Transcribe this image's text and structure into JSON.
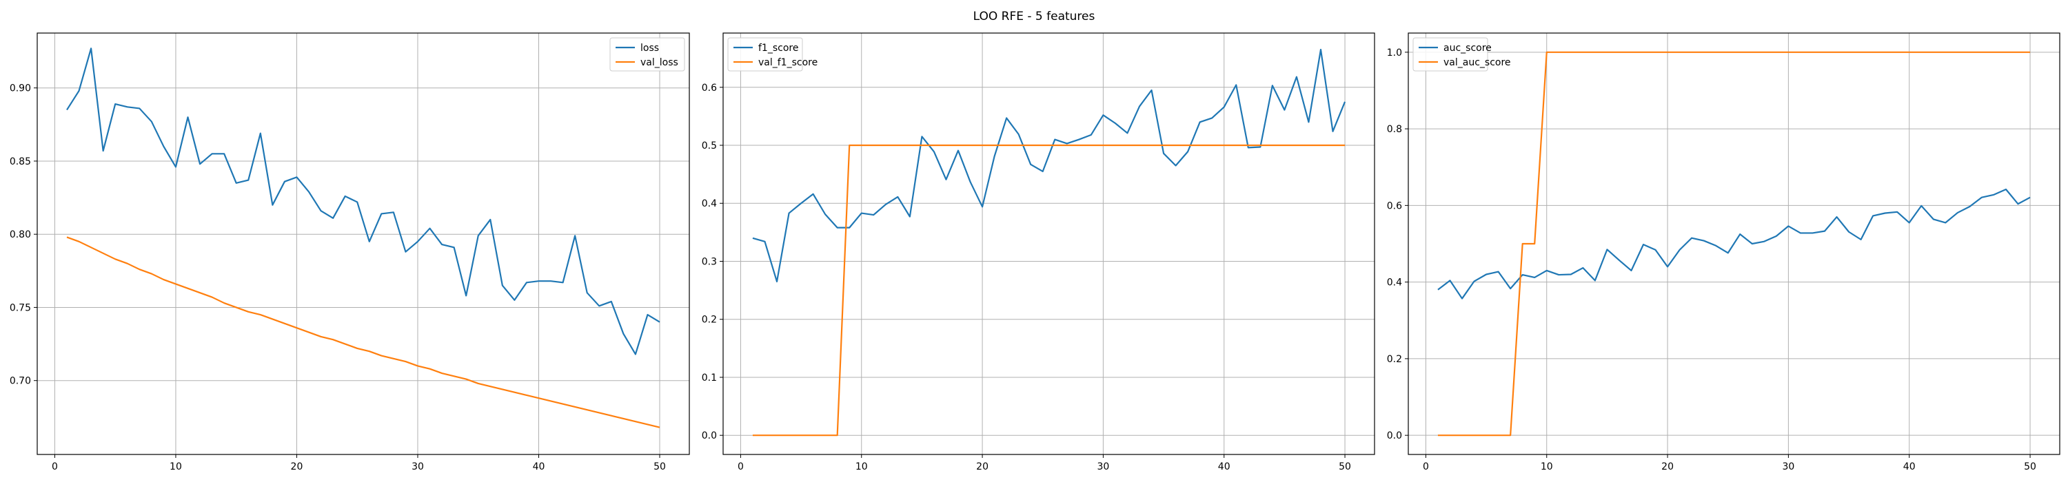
{
  "title": "LOO RFE - 5 features",
  "colors": {
    "series_1": "#1f77b4",
    "series_2": "#ff7f0e",
    "grid": "#b0b0b0",
    "frame": "#000000"
  },
  "chart_data": [
    {
      "type": "line",
      "grid": true,
      "legend_position": "top-right",
      "xlim": [
        -1.45,
        52.45
      ],
      "ylim": [
        0.6495,
        0.9375
      ],
      "x_ticks": [
        0,
        10,
        20,
        30,
        40,
        50
      ],
      "y_ticks": [
        0.7,
        0.75,
        0.8,
        0.85,
        0.9
      ],
      "y_tick_labels": [
        "0.70",
        "0.75",
        "0.80",
        "0.85",
        "0.90"
      ],
      "series": [
        {
          "name": "loss",
          "color": "#1f77b4",
          "x": [
            1,
            2,
            3,
            4,
            5,
            6,
            7,
            8,
            9,
            10,
            11,
            12,
            13,
            14,
            15,
            16,
            17,
            18,
            19,
            20,
            21,
            22,
            23,
            24,
            25,
            26,
            27,
            28,
            29,
            30,
            31,
            32,
            33,
            34,
            35,
            36,
            37,
            38,
            39,
            40,
            41,
            42,
            43,
            44,
            45,
            46,
            47,
            48,
            49,
            50
          ],
          "values": [
            0.885,
            0.898,
            0.927,
            0.857,
            0.889,
            0.887,
            0.886,
            0.877,
            0.86,
            0.846,
            0.88,
            0.848,
            0.855,
            0.855,
            0.835,
            0.837,
            0.869,
            0.82,
            0.836,
            0.839,
            0.829,
            0.816,
            0.811,
            0.826,
            0.822,
            0.795,
            0.814,
            0.815,
            0.788,
            0.795,
            0.804,
            0.793,
            0.791,
            0.758,
            0.799,
            0.81,
            0.765,
            0.755,
            0.767,
            0.768,
            0.768,
            0.767,
            0.799,
            0.76,
            0.751,
            0.754,
            0.732,
            0.718,
            0.745,
            0.74
          ]
        },
        {
          "name": "val_loss",
          "color": "#ff7f0e",
          "x": [
            1,
            2,
            3,
            4,
            5,
            6,
            7,
            8,
            9,
            10,
            11,
            12,
            13,
            14,
            15,
            16,
            17,
            18,
            19,
            20,
            21,
            22,
            23,
            24,
            25,
            26,
            27,
            28,
            29,
            30,
            31,
            32,
            33,
            34,
            35,
            36,
            37,
            38,
            39,
            40,
            41,
            42,
            43,
            44,
            45,
            46,
            47,
            48,
            49,
            50
          ],
          "values": [
            0.798,
            0.795,
            0.791,
            0.787,
            0.783,
            0.78,
            0.776,
            0.773,
            0.769,
            0.766,
            0.763,
            0.76,
            0.757,
            0.753,
            0.75,
            0.747,
            0.745,
            0.742,
            0.739,
            0.736,
            0.733,
            0.73,
            0.728,
            0.725,
            0.722,
            0.72,
            0.717,
            0.715,
            0.713,
            0.71,
            0.708,
            0.705,
            0.703,
            0.701,
            0.698,
            0.696,
            0.694,
            0.692,
            0.69,
            0.688,
            0.686,
            0.684,
            0.682,
            0.68,
            0.678,
            0.676,
            0.674,
            0.672,
            0.67,
            0.668
          ]
        }
      ]
    },
    {
      "type": "line",
      "grid": true,
      "legend_position": "top-left",
      "xlim": [
        -1.45,
        52.45
      ],
      "ylim": [
        -0.033,
        0.6935
      ],
      "x_ticks": [
        0,
        10,
        20,
        30,
        40,
        50
      ],
      "y_ticks": [
        0.0,
        0.1,
        0.2,
        0.3,
        0.4,
        0.5,
        0.6
      ],
      "y_tick_labels": [
        "0.0",
        "0.1",
        "0.2",
        "0.3",
        "0.4",
        "0.5",
        "0.6"
      ],
      "series": [
        {
          "name": "f1_score",
          "color": "#1f77b4",
          "x": [
            1,
            2,
            3,
            4,
            5,
            6,
            7,
            8,
            9,
            10,
            11,
            12,
            13,
            14,
            15,
            16,
            17,
            18,
            19,
            20,
            21,
            22,
            23,
            24,
            25,
            26,
            27,
            28,
            29,
            30,
            31,
            32,
            33,
            34,
            35,
            36,
            37,
            38,
            39,
            40,
            41,
            42,
            43,
            44,
            45,
            46,
            47,
            48,
            49,
            50
          ],
          "values": [
            0.34,
            0.334,
            0.265,
            0.383,
            0.4,
            0.416,
            0.381,
            0.358,
            0.358,
            0.383,
            0.38,
            0.398,
            0.411,
            0.377,
            0.515,
            0.489,
            0.441,
            0.491,
            0.437,
            0.394,
            0.481,
            0.547,
            0.519,
            0.467,
            0.455,
            0.51,
            0.503,
            0.51,
            0.518,
            0.552,
            0.538,
            0.521,
            0.567,
            0.595,
            0.486,
            0.465,
            0.489,
            0.54,
            0.547,
            0.566,
            0.604,
            0.496,
            0.497,
            0.603,
            0.561,
            0.618,
            0.54,
            0.665,
            0.524,
            0.575
          ]
        },
        {
          "name": "val_f1_score",
          "color": "#ff7f0e",
          "x": [
            1,
            2,
            3,
            4,
            5,
            6,
            7,
            8,
            9,
            10,
            11,
            12,
            13,
            14,
            15,
            16,
            17,
            18,
            19,
            20,
            21,
            22,
            23,
            24,
            25,
            26,
            27,
            28,
            29,
            30,
            31,
            32,
            33,
            34,
            35,
            36,
            37,
            38,
            39,
            40,
            41,
            42,
            43,
            44,
            45,
            46,
            47,
            48,
            49,
            50
          ],
          "values": [
            0,
            0,
            0,
            0,
            0,
            0,
            0,
            0,
            0.5,
            0.5,
            0.5,
            0.5,
            0.5,
            0.5,
            0.5,
            0.5,
            0.5,
            0.5,
            0.5,
            0.5,
            0.5,
            0.5,
            0.5,
            0.5,
            0.5,
            0.5,
            0.5,
            0.5,
            0.5,
            0.5,
            0.5,
            0.5,
            0.5,
            0.5,
            0.5,
            0.5,
            0.5,
            0.5,
            0.5,
            0.5,
            0.5,
            0.5,
            0.5,
            0.5,
            0.5,
            0.5,
            0.5,
            0.5,
            0.5,
            0.5
          ]
        }
      ]
    },
    {
      "type": "line",
      "grid": true,
      "legend_position": "top-left",
      "xlim": [
        -1.45,
        52.45
      ],
      "ylim": [
        -0.05,
        1.05
      ],
      "x_ticks": [
        0,
        10,
        20,
        30,
        40,
        50
      ],
      "y_ticks": [
        0.0,
        0.2,
        0.4,
        0.6,
        0.8,
        1.0
      ],
      "y_tick_labels": [
        "0.0",
        "0.2",
        "0.4",
        "0.6",
        "0.8",
        "1.0"
      ],
      "series": [
        {
          "name": "auc_score",
          "color": "#1f77b4",
          "x": [
            1,
            2,
            3,
            4,
            5,
            6,
            7,
            8,
            9,
            10,
            11,
            12,
            13,
            14,
            15,
            16,
            17,
            18,
            19,
            20,
            21,
            22,
            23,
            24,
            25,
            26,
            27,
            28,
            29,
            30,
            31,
            32,
            33,
            34,
            35,
            36,
            37,
            38,
            39,
            40,
            41,
            42,
            43,
            44,
            45,
            46,
            47,
            48,
            49,
            50
          ],
          "values": [
            0.38,
            0.404,
            0.357,
            0.402,
            0.42,
            0.427,
            0.383,
            0.419,
            0.412,
            0.43,
            0.419,
            0.42,
            0.437,
            0.404,
            0.485,
            0.457,
            0.43,
            0.498,
            0.484,
            0.44,
            0.484,
            0.515,
            0.508,
            0.495,
            0.476,
            0.525,
            0.5,
            0.506,
            0.52,
            0.546,
            0.528,
            0.528,
            0.533,
            0.57,
            0.531,
            0.511,
            0.573,
            0.58,
            0.583,
            0.555,
            0.599,
            0.564,
            0.555,
            0.581,
            0.597,
            0.621,
            0.628,
            0.642,
            0.604,
            0.621
          ]
        },
        {
          "name": "val_auc_score",
          "color": "#ff7f0e",
          "x": [
            1,
            2,
            3,
            4,
            5,
            6,
            7,
            8,
            9,
            10,
            11,
            12,
            13,
            14,
            15,
            16,
            17,
            18,
            19,
            20,
            21,
            22,
            23,
            24,
            25,
            26,
            27,
            28,
            29,
            30,
            31,
            32,
            33,
            34,
            35,
            36,
            37,
            38,
            39,
            40,
            41,
            42,
            43,
            44,
            45,
            46,
            47,
            48,
            49,
            50
          ],
          "values": [
            0,
            0,
            0,
            0,
            0,
            0,
            0,
            0.5,
            0.5,
            1,
            1,
            1,
            1,
            1,
            1,
            1,
            1,
            1,
            1,
            1,
            1,
            1,
            1,
            1,
            1,
            1,
            1,
            1,
            1,
            1,
            1,
            1,
            1,
            1,
            1,
            1,
            1,
            1,
            1,
            1,
            1,
            1,
            1,
            1,
            1,
            1,
            1,
            1,
            1,
            1
          ]
        }
      ]
    }
  ]
}
